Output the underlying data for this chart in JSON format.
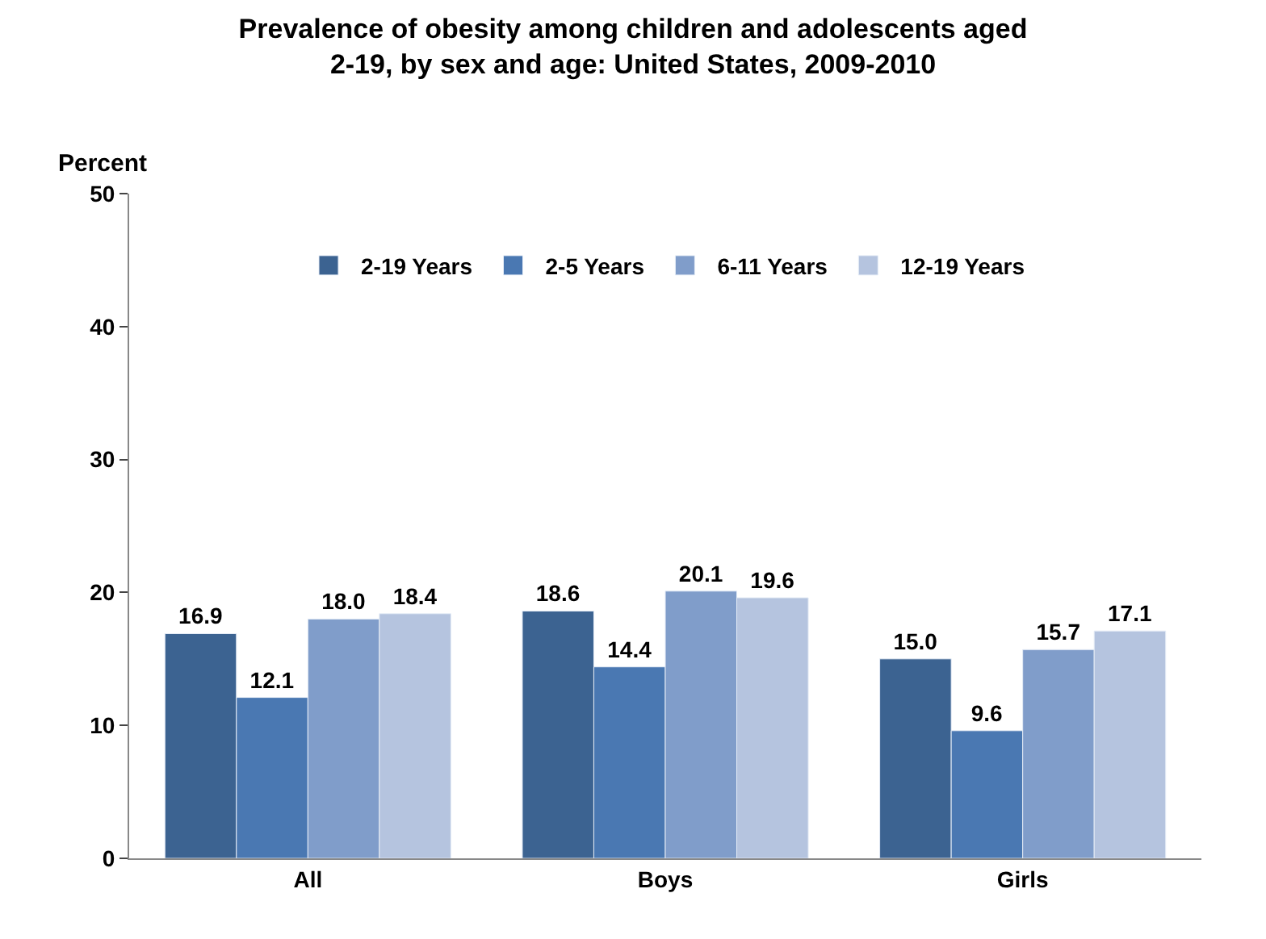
{
  "chart_data": {
    "type": "bar",
    "title": "Prevalence of obesity among children and adolescents aged\n2-19, by sex and age: United States, 2009-2010",
    "ylabel": "Percent",
    "categories": [
      "All",
      "Boys",
      "Girls"
    ],
    "series": [
      {
        "name": "2-19 Years",
        "color": "#3c6391",
        "values": [
          16.9,
          18.6,
          15.0
        ]
      },
      {
        "name": "2-5 Years",
        "color": "#4a78b2",
        "values": [
          12.1,
          14.4,
          9.6
        ]
      },
      {
        "name": "6-11 Years",
        "color": "#809dca",
        "values": [
          18.0,
          20.1,
          15.7
        ]
      },
      {
        "name": "12-19 Years",
        "color": "#b5c4df",
        "values": [
          18.4,
          19.6,
          17.1
        ]
      }
    ],
    "value_labels": [
      [
        "16.9",
        "18.6",
        "15.0"
      ],
      [
        "12.1",
        "14.4",
        "9.6"
      ],
      [
        "18.0",
        "20.1",
        "15.7"
      ],
      [
        "18.4",
        "19.6",
        "17.1"
      ]
    ],
    "ylim": [
      0,
      50
    ],
    "yticks": [
      0,
      10,
      20,
      30,
      40,
      50
    ],
    "legend": "top"
  }
}
